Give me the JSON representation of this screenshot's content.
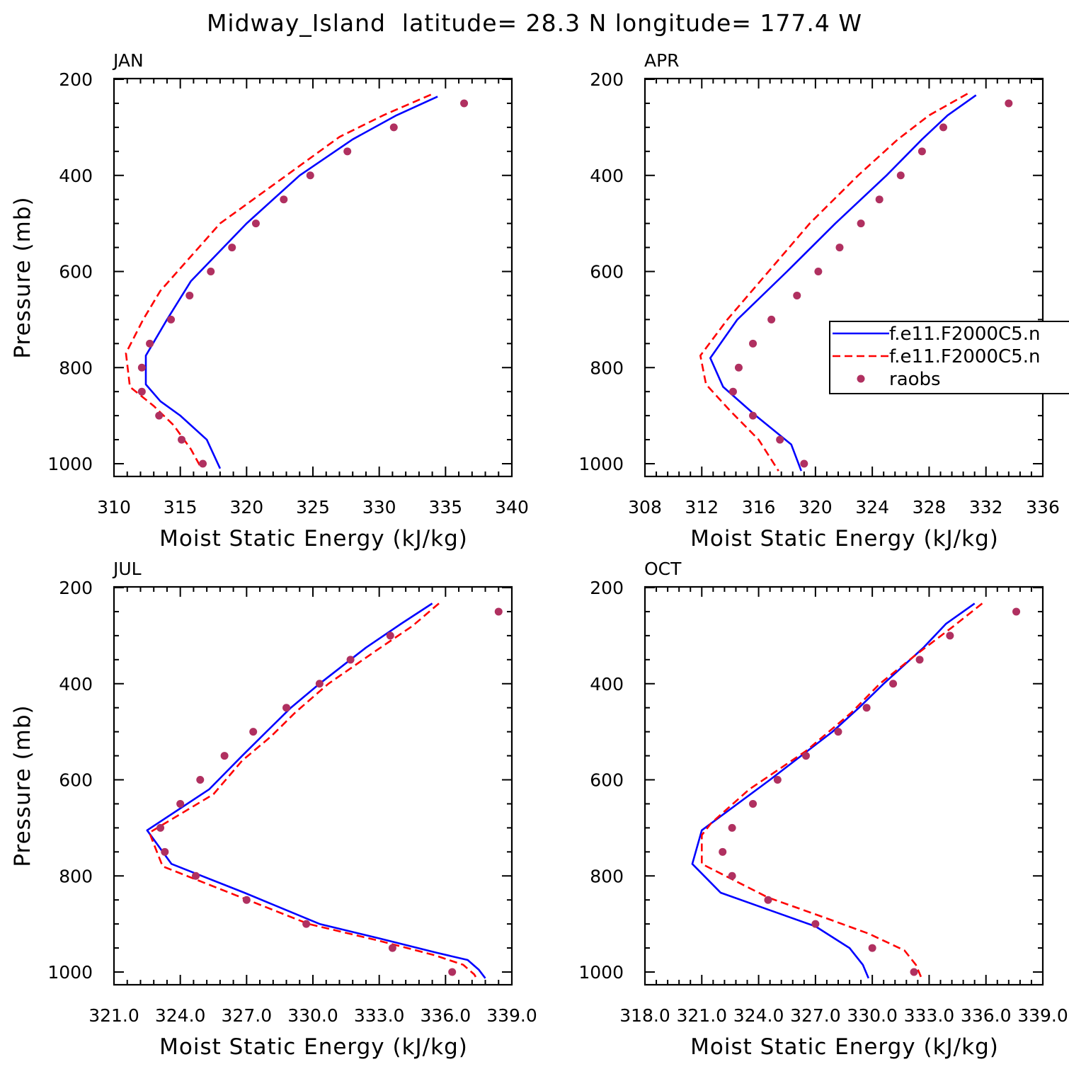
{
  "title": "Midway_Island  latitude= 28.3 N longitude= 177.4 W",
  "colors": {
    "model1": "#0000ff",
    "model2": "#ff0000",
    "raobs": "#b03060"
  },
  "legend": {
    "entries": [
      {
        "label": "f.e11.F2000C5.n",
        "style": "solid",
        "color": "#0000ff"
      },
      {
        "label": "f.e11.F2000C5.n",
        "style": "dashed",
        "color": "#ff0000"
      },
      {
        "label": "raobs",
        "style": "marker",
        "color": "#b03060"
      }
    ]
  },
  "chart_data": [
    {
      "type": "line",
      "month": "JAN",
      "xlabel": "Moist Static Energy (kJ/kg)",
      "ylabel": "Pressure (mb)",
      "xlim": [
        310,
        340
      ],
      "ylim": [
        1000,
        200
      ],
      "x_ticks": [
        310,
        315,
        320,
        325,
        330,
        335,
        340
      ],
      "x_tick_labels": [
        "310",
        "315",
        "320",
        "325",
        "330",
        "335",
        "340"
      ],
      "y_ticks": [
        200,
        400,
        600,
        800,
        1000
      ],
      "y_tick_labels": [
        "200",
        "400",
        "600",
        "800",
        "1000"
      ],
      "series": [
        {
          "name": "f.e11.F2000C5.n",
          "style": "solid",
          "pressure": [
            236,
            275,
            325,
            400,
            500,
            620,
            700,
            775,
            835,
            870,
            900,
            950,
            1010
          ],
          "mse": [
            334.4,
            331.3,
            328.0,
            324.0,
            320.0,
            315.8,
            314.0,
            312.4,
            312.4,
            313.5,
            315.0,
            317.0,
            318.0
          ]
        },
        {
          "name": "f.e11.F2000C5.n",
          "style": "dashed",
          "pressure": [
            232,
            275,
            320,
            380,
            500,
            640,
            700,
            770,
            840,
            880,
            920,
            970,
            1010
          ],
          "mse": [
            333.9,
            330.3,
            327.0,
            324.0,
            318.0,
            313.5,
            312.2,
            310.9,
            311.2,
            313.0,
            314.5,
            315.8,
            316.6
          ]
        },
        {
          "name": "raobs",
          "style": "marker",
          "pressure": [
            250,
            300,
            350,
            400,
            450,
            500,
            550,
            600,
            650,
            700,
            750,
            800,
            850,
            900,
            950,
            1000
          ],
          "mse": [
            336.4,
            331.1,
            327.6,
            324.8,
            322.8,
            320.7,
            318.9,
            317.3,
            315.7,
            314.3,
            312.7,
            312.1,
            312.1,
            313.4,
            315.1,
            316.7
          ]
        }
      ]
    },
    {
      "type": "line",
      "month": "APR",
      "xlabel": "Moist Static Energy (kJ/kg)",
      "ylabel": "",
      "xlim": [
        308,
        336
      ],
      "ylim": [
        1000,
        200
      ],
      "x_ticks": [
        308,
        312,
        316,
        320,
        324,
        328,
        332,
        336
      ],
      "x_tick_labels": [
        "308",
        "312",
        "316",
        "320",
        "324",
        "328",
        "332",
        "336"
      ],
      "y_ticks": [
        200,
        400,
        600,
        800,
        1000
      ],
      "y_tick_labels": [
        "200",
        "400",
        "600",
        "800",
        "1000"
      ],
      "series": [
        {
          "name": "f.e11.F2000C5.n",
          "style": "solid",
          "pressure": [
            233,
            275,
            325,
            400,
            500,
            600,
            700,
            780,
            840,
            900,
            960,
            1015
          ],
          "mse": [
            331.3,
            329.3,
            327.5,
            325.0,
            321.4,
            318.0,
            314.5,
            312.6,
            313.5,
            315.8,
            318.3,
            319.0
          ]
        },
        {
          "name": "f.e11.F2000C5.n",
          "style": "dashed",
          "pressure": [
            230,
            275,
            325,
            400,
            500,
            600,
            700,
            775,
            835,
            890,
            950,
            1015
          ],
          "mse": [
            330.7,
            328.0,
            325.8,
            323.0,
            319.6,
            316.7,
            313.8,
            311.9,
            312.3,
            314.0,
            316.0,
            317.4
          ]
        },
        {
          "name": "raobs",
          "style": "marker",
          "pressure": [
            250,
            300,
            350,
            400,
            450,
            500,
            550,
            600,
            650,
            700,
            750,
            800,
            850,
            900,
            950,
            1000
          ],
          "mse": [
            333.6,
            329.0,
            327.5,
            326.0,
            324.5,
            323.2,
            321.7,
            320.2,
            318.7,
            316.9,
            315.6,
            314.6,
            314.2,
            315.6,
            317.5,
            319.2
          ]
        }
      ]
    },
    {
      "type": "line",
      "month": "JUL",
      "xlabel": "Moist Static Energy (kJ/kg)",
      "ylabel": "Pressure (mb)",
      "xlim": [
        321.0,
        339.0
      ],
      "ylim": [
        1000,
        200
      ],
      "x_ticks": [
        321,
        324,
        327,
        330,
        333,
        336,
        339
      ],
      "x_tick_labels": [
        "321.0",
        "324.0",
        "327.0",
        "330.0",
        "333.0",
        "336.0",
        "339.0"
      ],
      "y_ticks": [
        200,
        400,
        600,
        800,
        1000
      ],
      "y_tick_labels": [
        "200",
        "400",
        "600",
        "800",
        "1000"
      ],
      "series": [
        {
          "name": "f.e11.F2000C5.n",
          "style": "solid",
          "pressure": [
            233,
            275,
            325,
            400,
            450,
            500,
            550,
            620,
            705,
            775,
            835,
            900,
            930,
            960,
            975,
            995,
            1013
          ],
          "mse": [
            335.4,
            334.0,
            332.4,
            330.3,
            329.0,
            327.9,
            326.8,
            325.3,
            322.5,
            323.6,
            326.9,
            330.3,
            333.0,
            335.6,
            337.0,
            337.5,
            337.8
          ]
        },
        {
          "name": "f.e11.F2000C5.n",
          "style": "dashed",
          "pressure": [
            233,
            280,
            330,
            400,
            460,
            510,
            560,
            630,
            710,
            780,
            840,
            900,
            935,
            965,
            985,
            1005,
            1013
          ],
          "mse": [
            335.7,
            334.5,
            332.9,
            330.7,
            329.2,
            328.1,
            326.8,
            325.5,
            322.6,
            323.2,
            326.5,
            329.8,
            333.0,
            335.5,
            336.8,
            337.3,
            337.4
          ]
        },
        {
          "name": "raobs",
          "style": "marker",
          "pressure": [
            250,
            300,
            350,
            400,
            450,
            500,
            550,
            600,
            650,
            700,
            750,
            800,
            850,
            900,
            950,
            1000
          ],
          "mse": [
            338.4,
            333.5,
            331.7,
            330.3,
            328.8,
            327.3,
            326.0,
            324.9,
            324.0,
            323.1,
            323.3,
            324.7,
            327.0,
            329.7,
            333.6,
            336.3
          ]
        }
      ]
    },
    {
      "type": "line",
      "month": "OCT",
      "xlabel": "Moist Static Energy (kJ/kg)",
      "ylabel": "",
      "xlim": [
        318.0,
        339.0
      ],
      "ylim": [
        1000,
        200
      ],
      "x_ticks": [
        318,
        321,
        324,
        327,
        330,
        333,
        336,
        339
      ],
      "x_tick_labels": [
        "318.0",
        "321.0",
        "324.0",
        "327.0",
        "330.0",
        "333.0",
        "336.0",
        "339.0"
      ],
      "y_ticks": [
        200,
        400,
        600,
        800,
        1000
      ],
      "y_tick_labels": [
        "200",
        "400",
        "600",
        "800",
        "1000"
      ],
      "series": [
        {
          "name": "f.e11.F2000C5.n",
          "style": "solid",
          "pressure": [
            233,
            275,
            325,
            400,
            450,
            500,
            600,
            705,
            775,
            835,
            870,
            905,
            950,
            985,
            1013
          ],
          "mse": [
            335.4,
            333.9,
            332.7,
            330.6,
            329.3,
            327.9,
            324.6,
            321.0,
            320.5,
            322.0,
            324.5,
            327.0,
            328.8,
            329.5,
            329.8
          ]
        },
        {
          "name": "f.e11.F2000C5.n",
          "style": "dashed",
          "pressure": [
            233,
            280,
            340,
            400,
            460,
            540,
            620,
            690,
            715,
            775,
            845,
            880,
            920,
            955,
            985,
            1013
          ],
          "mse": [
            335.8,
            334.3,
            332.3,
            330.4,
            328.9,
            326.5,
            323.5,
            321.5,
            321.0,
            321.0,
            324.5,
            327.0,
            329.8,
            331.7,
            332.3,
            332.6
          ]
        },
        {
          "name": "raobs",
          "style": "marker",
          "pressure": [
            250,
            300,
            350,
            400,
            450,
            500,
            550,
            600,
            650,
            700,
            750,
            800,
            850,
            900,
            950,
            1000
          ],
          "mse": [
            337.6,
            334.1,
            332.5,
            331.1,
            329.7,
            328.2,
            326.5,
            325.0,
            323.7,
            322.6,
            322.1,
            322.6,
            324.5,
            327.0,
            330.0,
            332.2
          ]
        }
      ]
    }
  ]
}
